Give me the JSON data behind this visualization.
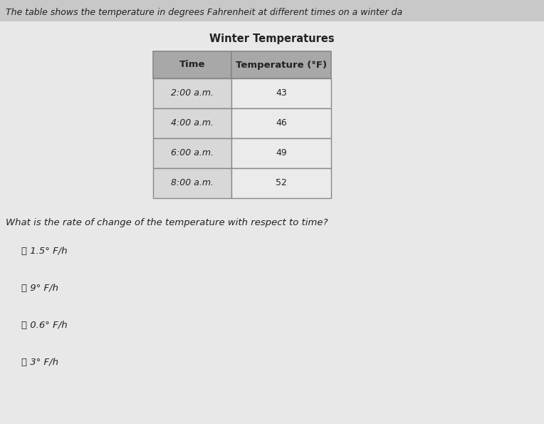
{
  "background_top": "#c8c8c8",
  "background_main": "#e8e8e8",
  "top_text": "The table shows the temperature in degrees Fahrenheit at different times on a winter da",
  "table_title": "Winter Temperatures",
  "col_headers": [
    "Time",
    "Temperature (°F)"
  ],
  "table_data": [
    [
      "2:00 a.m.",
      "43"
    ],
    [
      "4:00 a.m.",
      "46"
    ],
    [
      "6:00 a.m.",
      "49"
    ],
    [
      "8:00 a.m.",
      "52"
    ]
  ],
  "question": "What is the rate of change of the temperature with respect to time?",
  "choice_texts": [
    "1.5° F/h",
    "9° F/h",
    "0.6° F/h",
    "3° F/h"
  ],
  "choice_labels": [
    "Ⓐ",
    "Ⓑ",
    "Ⓒ",
    "Ⓓ"
  ],
  "header_bg": "#a8a8a8",
  "row_bg": "#f0f0f0",
  "row_border": "#888888",
  "text_color": "#222222",
  "title_fontsize": 10.5,
  "header_fontsize": 9.5,
  "data_fontsize": 9,
  "question_fontsize": 9.5,
  "choice_fontsize": 9.5
}
